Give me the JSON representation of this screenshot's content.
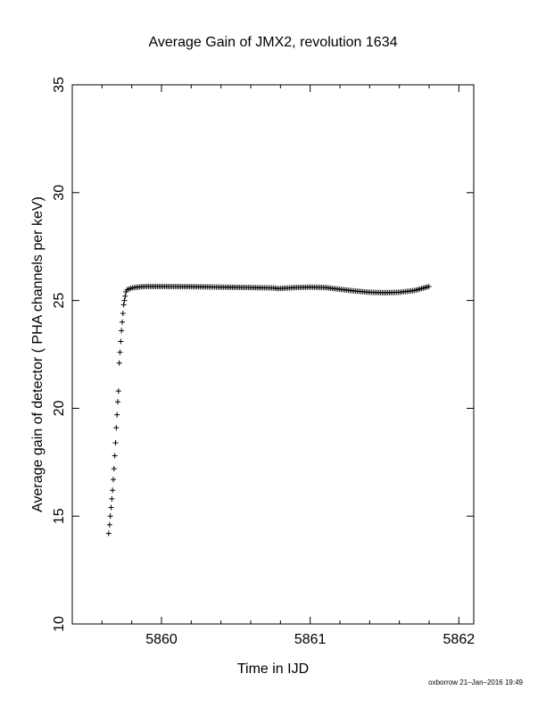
{
  "chart_data": {
    "type": "scatter",
    "title": "Average Gain of JMX2, revolution 1634",
    "xlabel": "Time in IJD",
    "ylabel": "Average gain of detector ( PHA channels per keV)",
    "xlim": [
      5859.4,
      5862.1
    ],
    "ylim": [
      10,
      35
    ],
    "xticks": [
      5860,
      5861,
      5862
    ],
    "yticks": [
      10,
      15,
      20,
      25,
      30,
      35
    ],
    "marker": "+",
    "grid": false,
    "series": [
      {
        "rampup": {
          "x": [
            5859.645,
            5859.651,
            5859.656,
            5859.661,
            5859.666,
            5859.671,
            5859.676,
            5859.681,
            5859.686,
            5859.691,
            5859.696,
            5859.701,
            5859.706,
            5859.711,
            5859.716,
            5859.721,
            5859.726,
            5859.731,
            5859.736,
            5859.741,
            5859.746,
            5859.751,
            5859.756,
            5859.761
          ],
          "y": [
            14.2,
            14.6,
            15.0,
            15.4,
            15.8,
            16.2,
            16.7,
            17.2,
            17.8,
            18.4,
            19.1,
            19.7,
            20.3,
            20.8,
            22.1,
            22.6,
            23.1,
            23.6,
            24.0,
            24.4,
            24.8,
            25.0,
            25.2,
            25.4
          ]
        },
        "plateau": {
          "x": [
            5859.77,
            5859.8,
            5859.85,
            5859.9,
            5860.0,
            5860.2,
            5860.4,
            5860.6,
            5860.76,
            5860.78,
            5860.9,
            5861.0,
            5861.1,
            5861.2,
            5861.3,
            5861.4,
            5861.5,
            5861.6,
            5861.7,
            5861.8
          ],
          "y": [
            25.5,
            25.58,
            25.63,
            25.65,
            25.65,
            25.64,
            25.62,
            25.6,
            25.58,
            25.55,
            25.6,
            25.62,
            25.6,
            25.52,
            25.44,
            25.38,
            25.36,
            25.38,
            25.46,
            25.65
          ]
        }
      }
    ]
  },
  "footer": {
    "credit": "oxborrow 21–Jan–2016 19:49"
  }
}
